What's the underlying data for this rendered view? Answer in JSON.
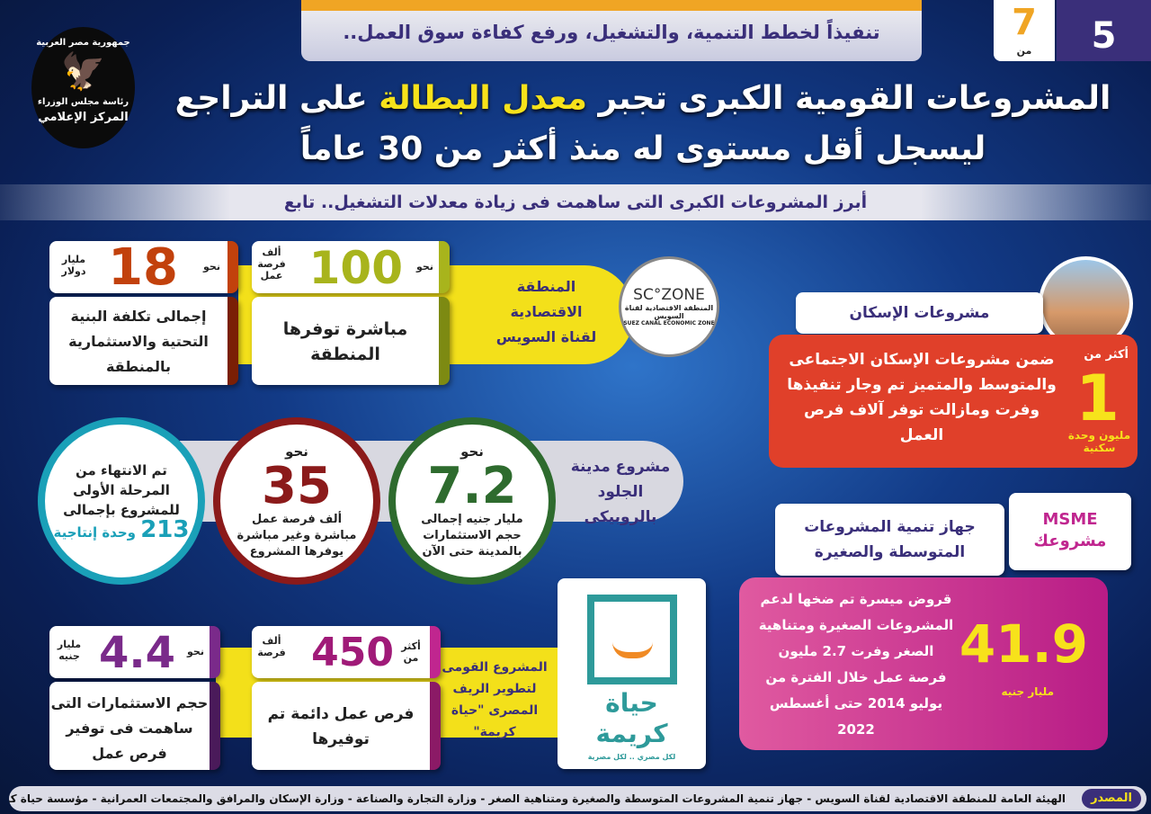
{
  "header": {
    "tagline": "تنفيذاً لخطط التنمية، والتشغيل، ورفع كفاءة سوق العمل..",
    "page_current": "5",
    "page_of": "من",
    "page_total": "7",
    "logo": {
      "line1": "جمهورية مصر العربية",
      "line2": "رئاسة مجلس الوزراء",
      "line3": "المركز الإعلامي"
    },
    "title_part1": "المشروعات القومية الكبرى تجبر ",
    "title_highlight": "معدل البطالة",
    "title_part2": " على التراجع",
    "title_line2": "ليسجل أقل مستوى له منذ أكثر من 30 عاماً",
    "subtitle": "أبرز المشروعات الكبرى التى ساهمت فى زيادة معدلات التشغيل.. تابع"
  },
  "suez": {
    "label": "المنطقة الاقتصادية لقناة السويس",
    "logo_en": "SC°ZONE",
    "logo_ar": "المنطقة الاقتصادية لقناة السويس",
    "logo_sub": "SUEZ CANAL ECONOMIC ZONE",
    "stat1": {
      "prefix": "نحو",
      "value": "100",
      "unit": "ألف فرصة عمل",
      "desc": "مباشرة توفرها المنطقة"
    },
    "stat2": {
      "prefix": "نحو",
      "value": "18",
      "unit": "مليار دولار",
      "desc": "إجمالى تكلفة البنية التحتية والاستثمارية بالمنطقة"
    }
  },
  "housing": {
    "label": "مشروعات الإسكان",
    "prefix": "أكثر من",
    "value": "1",
    "unit": "مليون وحدة سكنية",
    "desc": "ضمن مشروعات الإسكان الاجتماعى والمتوسط والمتميز تم وجار تنفيذها وفرت ومازالت توفر آلاف فرص العمل"
  },
  "leather": {
    "label": "مشروع مدينة الجلود بالروبيكى",
    "c1": {
      "prefix": "نحو",
      "value": "7.2",
      "desc": "مليار جنيه إجمالى حجم الاستثمارات بالمدينة حتى الآن"
    },
    "c2": {
      "prefix": "نحو",
      "value": "35",
      "desc": "ألف فرصة عمل مباشرة وغير مباشرة يوفرها المشروع"
    },
    "c3": {
      "desc": "تم الانتهاء من المرحلة الأولى للمشروع بإجمالى",
      "value": "213",
      "unit": "وحدة إنتاجية"
    }
  },
  "msme": {
    "label": "جهاز تنمية المشروعات المتوسطة والصغيرة",
    "logo_en": "MSME",
    "logo_ar": "مشروعك",
    "value": "41.9",
    "unit": "مليار جنيه",
    "desc": "قروض ميسرة تم ضخها لدعم المشروعات الصغيرة ومتناهية الصغر وفرت 2.7 مليون فرصة عمل خلال الفترة من يوليو 2014 حتى أغسطس 2022"
  },
  "hayah": {
    "label": "المشروع القومى لتطوير الريف المصرى \"حياة كريمة\"",
    "logo_text": "حياة كريمة",
    "logo_tagline": "لكل مصري .. لكل مصرية",
    "stat1": {
      "prefix": "أكثر من",
      "value": "450",
      "unit": "ألف فرصة",
      "desc": "فرص عمل دائمة تم توفيرها"
    },
    "stat2": {
      "prefix": "نحو",
      "value": "4.4",
      "unit": "مليار جنيه",
      "desc": "حجم الاستثمارات التى ساهمت فى توفير فرص عمل"
    }
  },
  "footer": {
    "source_label": "المصدر",
    "sources": "الهيئة العامة للمنطقة الاقتصادية لقناة السويس - جهاز تنمية المشروعات المتوسطة والصغيرة ومتناهية الصغر - وزارة التجارة والصناعة - وزارة الإسكان والمرافق والمجتمعات العمرانية - مؤسسة حياة كريمة"
  },
  "colors": {
    "navy": "#3a2f7a",
    "yellow": "#f7e21b",
    "orange": "#c2410c",
    "olive": "#a8b41c",
    "red": "#e0402a",
    "maroon": "#8b1a1a",
    "green": "#2e6b2e",
    "teal": "#1aa0b8",
    "magenta": "#c0268f",
    "purple": "#7a2a8a"
  }
}
